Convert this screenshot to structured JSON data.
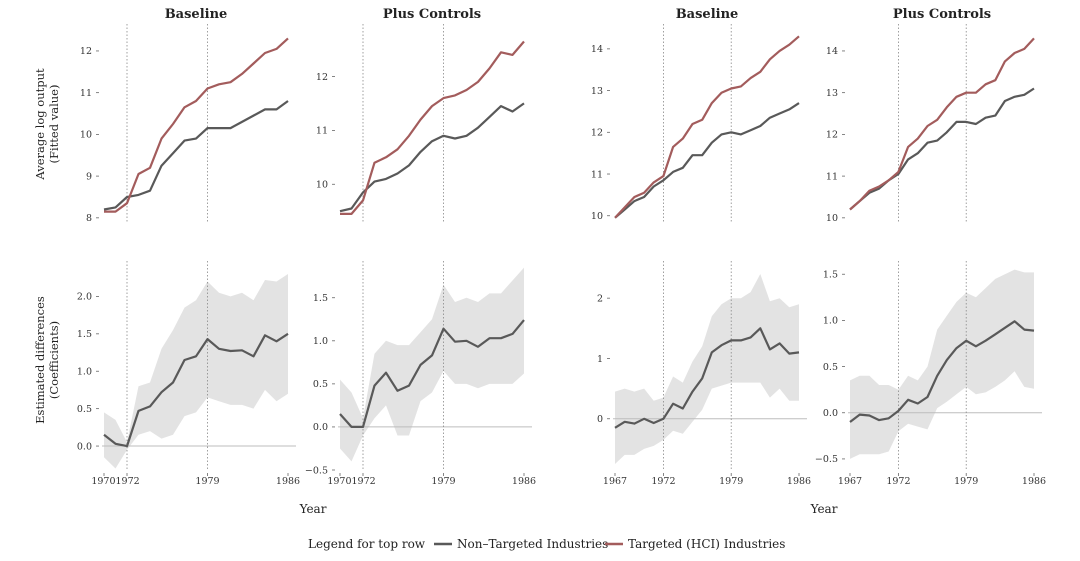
{
  "legend": {
    "title": "Legend for top row",
    "items": [
      {
        "label": "Non–Targeted Industries",
        "color": "#595959"
      },
      {
        "label": "Targeted (HCI) Industries",
        "color": "#a35c5c"
      }
    ]
  },
  "colors": {
    "non_targeted": "#595959",
    "targeted": "#a35c5c",
    "band": "#e3e3e3",
    "zero_line": "#bdbdbd",
    "event_line": "#888888"
  },
  "ylabels": {
    "top": [
      "Average log output",
      "(Fitted value)"
    ],
    "bottom": [
      "Estimated differences",
      "(Coefficients)"
    ]
  },
  "xlabel": "Year",
  "chart_data": [
    {
      "type": "line",
      "row": "top",
      "panel": 1,
      "title": "Baseline",
      "x": [
        1970,
        1971,
        1972,
        1973,
        1974,
        1975,
        1976,
        1977,
        1978,
        1979,
        1980,
        1981,
        1982,
        1983,
        1984,
        1985,
        1986
      ],
      "xticks": [
        {
          "v": 1970,
          "label": "1970"
        },
        {
          "v": 1972,
          "label": "1972"
        },
        {
          "v": 1979,
          "label": "1979"
        },
        {
          "v": 1986,
          "label": "1986"
        }
      ],
      "xtick_labels_merged": [
        "19701972"
      ],
      "vlines": [
        1972,
        1979
      ],
      "ylim": [
        7.9,
        12.55
      ],
      "yticks": [
        8,
        9,
        10,
        11,
        12
      ],
      "series": [
        {
          "name": "Non–Targeted Industries",
          "values": [
            8.2,
            8.25,
            8.5,
            8.55,
            8.65,
            9.25,
            9.55,
            9.85,
            9.9,
            10.15,
            10.15,
            10.15,
            10.3,
            10.45,
            10.6,
            10.6,
            10.8
          ]
        },
        {
          "name": "Targeted (HCI) Industries",
          "values": [
            8.15,
            8.15,
            8.35,
            9.05,
            9.2,
            9.9,
            10.25,
            10.65,
            10.8,
            11.1,
            11.2,
            11.25,
            11.45,
            11.7,
            11.95,
            12.05,
            12.3
          ]
        }
      ]
    },
    {
      "type": "line",
      "row": "top",
      "panel": 2,
      "title": "Plus Controls",
      "x": [
        1970,
        1971,
        1972,
        1973,
        1974,
        1975,
        1976,
        1977,
        1978,
        1979,
        1980,
        1981,
        1982,
        1983,
        1984,
        1985,
        1986
      ],
      "xticks": [
        {
          "v": 1970,
          "label": "1970"
        },
        {
          "v": 1972,
          "label": "1972"
        },
        {
          "v": 1979,
          "label": "1979"
        },
        {
          "v": 1986,
          "label": "1986"
        }
      ],
      "xtick_labels_merged": [
        "19701972"
      ],
      "vlines": [
        1972,
        1979
      ],
      "ylim": [
        9.3,
        12.9
      ],
      "yticks": [
        10,
        11,
        12
      ],
      "series": [
        {
          "name": "Non–Targeted Industries",
          "values": [
            9.5,
            9.55,
            9.85,
            10.05,
            10.1,
            10.2,
            10.35,
            10.6,
            10.8,
            10.9,
            10.85,
            10.9,
            11.05,
            11.25,
            11.45,
            11.35,
            11.5
          ]
        },
        {
          "name": "Targeted (HCI) Industries",
          "values": [
            9.45,
            9.45,
            9.7,
            10.4,
            10.5,
            10.65,
            10.9,
            11.2,
            11.45,
            11.6,
            11.65,
            11.75,
            11.9,
            12.15,
            12.45,
            12.4,
            12.65
          ]
        }
      ]
    },
    {
      "type": "line",
      "row": "top",
      "panel": 3,
      "title": "Baseline",
      "x": [
        1967,
        1968,
        1969,
        1970,
        1971,
        1972,
        1973,
        1974,
        1975,
        1976,
        1977,
        1978,
        1979,
        1980,
        1981,
        1982,
        1983,
        1984,
        1985,
        1986
      ],
      "xticks": [
        {
          "v": 1967,
          "label": "1967"
        },
        {
          "v": 1972,
          "label": "1972"
        },
        {
          "v": 1979,
          "label": "1979"
        },
        {
          "v": 1986,
          "label": "1986"
        }
      ],
      "vlines": [
        1972,
        1979
      ],
      "ylim": [
        9.85,
        14.5
      ],
      "yticks": [
        10,
        11,
        12,
        13,
        14
      ],
      "series": [
        {
          "name": "Non–Targeted Industries",
          "values": [
            9.95,
            10.15,
            10.35,
            10.45,
            10.7,
            10.85,
            11.05,
            11.15,
            11.45,
            11.45,
            11.75,
            11.95,
            12.0,
            11.95,
            12.05,
            12.15,
            12.35,
            12.45,
            12.55,
            12.7
          ]
        },
        {
          "name": "Targeted (HCI) Industries",
          "values": [
            9.95,
            10.2,
            10.45,
            10.55,
            10.8,
            10.95,
            11.65,
            11.85,
            12.2,
            12.3,
            12.7,
            12.95,
            13.05,
            13.1,
            13.3,
            13.45,
            13.75,
            13.95,
            14.1,
            14.3
          ]
        }
      ]
    },
    {
      "type": "line",
      "row": "top",
      "panel": 4,
      "title": "Plus Controls",
      "x": [
        1967,
        1968,
        1969,
        1970,
        1971,
        1972,
        1973,
        1974,
        1975,
        1976,
        1977,
        1978,
        1979,
        1980,
        1981,
        1982,
        1983,
        1984,
        1985,
        1986
      ],
      "xticks": [
        {
          "v": 1967,
          "label": "1967"
        },
        {
          "v": 1972,
          "label": "1972"
        },
        {
          "v": 1979,
          "label": "1979"
        },
        {
          "v": 1986,
          "label": "1986"
        }
      ],
      "vlines": [
        1972,
        1979
      ],
      "ylim": [
        9.9,
        14.55
      ],
      "yticks": [
        10,
        11,
        12,
        13,
        14
      ],
      "series": [
        {
          "name": "Non–Targeted Industries",
          "values": [
            10.2,
            10.4,
            10.6,
            10.7,
            10.9,
            11.05,
            11.4,
            11.55,
            11.8,
            11.85,
            12.05,
            12.3,
            12.3,
            12.25,
            12.4,
            12.45,
            12.8,
            12.9,
            12.95,
            13.1
          ]
        },
        {
          "name": "Targeted (HCI) Industries",
          "values": [
            10.2,
            10.4,
            10.65,
            10.75,
            10.9,
            11.1,
            11.7,
            11.9,
            12.2,
            12.35,
            12.65,
            12.9,
            13.0,
            13.0,
            13.2,
            13.3,
            13.75,
            13.95,
            14.05,
            14.3
          ]
        }
      ]
    },
    {
      "type": "area",
      "row": "bottom",
      "panel": 1,
      "x": [
        1970,
        1971,
        1972,
        1973,
        1974,
        1975,
        1976,
        1977,
        1978,
        1979,
        1980,
        1981,
        1982,
        1983,
        1984,
        1985,
        1986
      ],
      "xticks": [
        {
          "v": 1970,
          "label": "1970"
        },
        {
          "v": 1972,
          "label": "1972"
        },
        {
          "v": 1979,
          "label": "1979"
        },
        {
          "v": 1986,
          "label": "1986"
        }
      ],
      "xtick_labels_merged": [
        "19701972"
      ],
      "vlines": [
        1972,
        1979
      ],
      "hline": 0,
      "ylim": [
        -0.32,
        2.42
      ],
      "yticks": [
        {
          "v": 0,
          "label": "0.0"
        },
        {
          "v": 0.5,
          "label": "0.5"
        },
        {
          "v": 1,
          "label": "1.0"
        },
        {
          "v": 1.5,
          "label": "1.5"
        },
        {
          "v": 2,
          "label": "2.0"
        }
      ],
      "estimate": [
        0.15,
        0.03,
        0.0,
        0.47,
        0.53,
        0.72,
        0.85,
        1.15,
        1.2,
        1.43,
        1.3,
        1.27,
        1.28,
        1.2,
        1.48,
        1.4,
        1.5
      ],
      "upper": [
        0.45,
        0.35,
        0.05,
        0.8,
        0.85,
        1.3,
        1.55,
        1.85,
        1.95,
        2.2,
        2.05,
        2.0,
        2.05,
        1.95,
        2.22,
        2.2,
        2.3
      ],
      "lower": [
        -0.15,
        -0.3,
        -0.05,
        0.15,
        0.2,
        0.1,
        0.15,
        0.4,
        0.45,
        0.65,
        0.6,
        0.55,
        0.55,
        0.5,
        0.75,
        0.6,
        0.7
      ]
    },
    {
      "type": "area",
      "row": "bottom",
      "panel": 2,
      "x": [
        1970,
        1971,
        1972,
        1973,
        1974,
        1975,
        1976,
        1977,
        1978,
        1979,
        1980,
        1981,
        1982,
        1983,
        1984,
        1985,
        1986
      ],
      "xticks": [
        {
          "v": 1970,
          "label": "1970"
        },
        {
          "v": 1972,
          "label": "1972"
        },
        {
          "v": 1979,
          "label": "1979"
        },
        {
          "v": 1986,
          "label": "1986"
        }
      ],
      "xtick_labels_merged": [
        "19701972"
      ],
      "vlines": [
        1972,
        1979
      ],
      "hline": 0,
      "ylim": [
        -0.5,
        1.88
      ],
      "yticks": [
        {
          "v": -0.5,
          "label": "−0.5"
        },
        {
          "v": 0,
          "label": "0.0"
        },
        {
          "v": 0.5,
          "label": "0.5"
        },
        {
          "v": 1,
          "label": "1.0"
        },
        {
          "v": 1.5,
          "label": "1.5"
        }
      ],
      "estimate": [
        0.15,
        0.0,
        0.0,
        0.48,
        0.63,
        0.42,
        0.48,
        0.72,
        0.83,
        1.14,
        0.99,
        1.0,
        0.93,
        1.03,
        1.03,
        1.08,
        1.24
      ],
      "upper": [
        0.55,
        0.4,
        0.1,
        0.85,
        1.0,
        0.95,
        0.95,
        1.1,
        1.25,
        1.65,
        1.45,
        1.5,
        1.45,
        1.55,
        1.55,
        1.7,
        1.85
      ],
      "lower": [
        -0.25,
        -0.4,
        -0.1,
        0.1,
        0.25,
        -0.1,
        -0.1,
        0.3,
        0.4,
        0.65,
        0.5,
        0.5,
        0.45,
        0.5,
        0.5,
        0.5,
        0.62
      ]
    },
    {
      "type": "area",
      "row": "bottom",
      "panel": 3,
      "x": [
        1967,
        1968,
        1969,
        1970,
        1971,
        1972,
        1973,
        1974,
        1975,
        1976,
        1977,
        1978,
        1979,
        1980,
        1981,
        1982,
        1983,
        1984,
        1985,
        1986
      ],
      "xticks": [
        {
          "v": 1967,
          "label": "1967"
        },
        {
          "v": 1972,
          "label": "1972"
        },
        {
          "v": 1979,
          "label": "1979"
        },
        {
          "v": 1986,
          "label": "1986"
        }
      ],
      "vlines": [
        1972,
        1979
      ],
      "hline": 0,
      "ylim": [
        -0.85,
        2.55
      ],
      "yticks": [
        {
          "v": 0,
          "label": "0"
        },
        {
          "v": 1,
          "label": "1"
        },
        {
          "v": 2,
          "label": "2"
        }
      ],
      "estimate": [
        -0.15,
        -0.05,
        -0.08,
        0.0,
        -0.07,
        0.0,
        0.25,
        0.17,
        0.45,
        0.67,
        1.1,
        1.22,
        1.3,
        1.3,
        1.35,
        1.5,
        1.15,
        1.25,
        1.08,
        1.1
      ],
      "upper": [
        0.45,
        0.5,
        0.45,
        0.5,
        0.3,
        0.35,
        0.7,
        0.6,
        0.95,
        1.2,
        1.7,
        1.9,
        2.0,
        2.0,
        2.1,
        2.4,
        1.95,
        2.0,
        1.85,
        1.9
      ],
      "lower": [
        -0.75,
        -0.6,
        -0.6,
        -0.5,
        -0.45,
        -0.35,
        -0.2,
        -0.25,
        -0.05,
        0.15,
        0.5,
        0.55,
        0.6,
        0.6,
        0.6,
        0.6,
        0.35,
        0.5,
        0.3,
        0.3
      ]
    },
    {
      "type": "area",
      "row": "bottom",
      "panel": 4,
      "x": [
        1967,
        1968,
        1969,
        1970,
        1971,
        1972,
        1973,
        1974,
        1975,
        1976,
        1977,
        1978,
        1979,
        1980,
        1981,
        1982,
        1983,
        1984,
        1985,
        1986
      ],
      "xticks": [
        {
          "v": 1967,
          "label": "1967"
        },
        {
          "v": 1972,
          "label": "1972"
        },
        {
          "v": 1979,
          "label": "1979"
        },
        {
          "v": 1986,
          "label": "1986"
        }
      ],
      "vlines": [
        1972,
        1979
      ],
      "hline": 0,
      "ylim": [
        -0.62,
        1.6
      ],
      "yticks": [
        {
          "v": -0.5,
          "label": "−0.5"
        },
        {
          "v": 0,
          "label": "0.0"
        },
        {
          "v": 0.5,
          "label": "0.5"
        },
        {
          "v": 1,
          "label": "1.0"
        },
        {
          "v": 1.5,
          "label": "1.5"
        }
      ],
      "estimate": [
        -0.1,
        -0.02,
        -0.03,
        -0.08,
        -0.06,
        0.02,
        0.14,
        0.1,
        0.17,
        0.4,
        0.57,
        0.7,
        0.78,
        0.72,
        0.78,
        0.85,
        0.92,
        0.99,
        0.9,
        0.89
      ],
      "upper": [
        0.35,
        0.4,
        0.4,
        0.3,
        0.3,
        0.25,
        0.4,
        0.35,
        0.5,
        0.9,
        1.05,
        1.2,
        1.3,
        1.25,
        1.35,
        1.45,
        1.5,
        1.55,
        1.52,
        1.52
      ],
      "lower": [
        -0.5,
        -0.45,
        -0.45,
        -0.45,
        -0.42,
        -0.2,
        -0.12,
        -0.15,
        -0.18,
        0.05,
        0.12,
        0.2,
        0.28,
        0.2,
        0.22,
        0.28,
        0.35,
        0.45,
        0.28,
        0.26
      ]
    }
  ]
}
